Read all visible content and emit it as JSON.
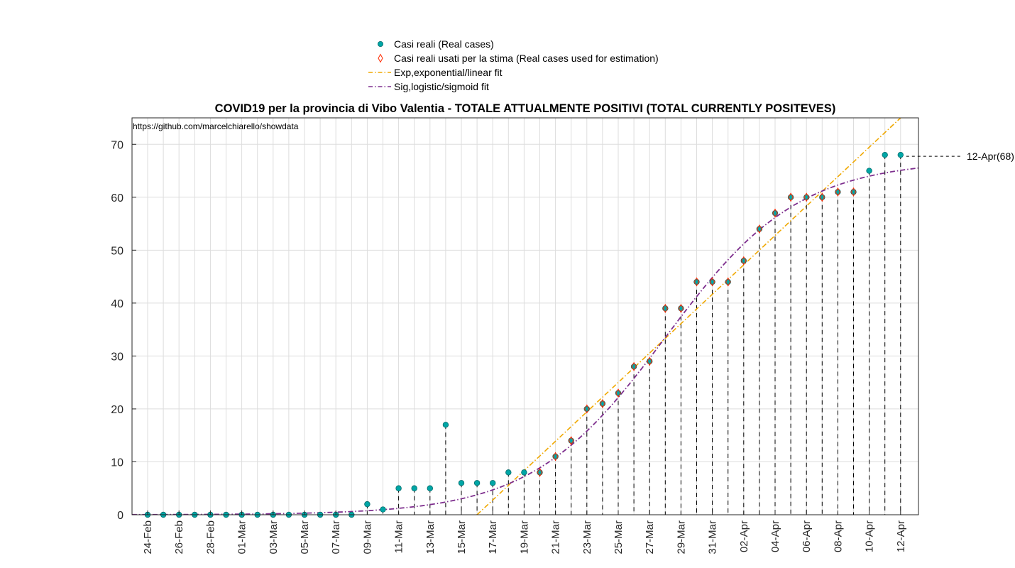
{
  "chart_data": {
    "type": "line",
    "title": "COVID19 per la provincia di Vibo Valentia - TOTALE ATTUALMENTE POSITIVI (TOTAL CURRENTLY POSITEVES)",
    "annotation_url": "https://github.com/marcelchiarello/showdata",
    "xlabel": "",
    "ylabel": "",
    "ylim": [
      0,
      75
    ],
    "yticks": [
      0,
      10,
      20,
      30,
      40,
      50,
      60,
      70
    ],
    "grid": true,
    "legend_position": "top-center",
    "x": [
      "24-Feb",
      "25-Feb",
      "26-Feb",
      "27-Feb",
      "28-Feb",
      "29-Feb",
      "01-Mar",
      "02-Mar",
      "03-Mar",
      "04-Mar",
      "05-Mar",
      "06-Mar",
      "07-Mar",
      "08-Mar",
      "09-Mar",
      "10-Mar",
      "11-Mar",
      "12-Mar",
      "13-Mar",
      "14-Mar",
      "15-Mar",
      "16-Mar",
      "17-Mar",
      "18-Mar",
      "19-Mar",
      "20-Mar",
      "21-Mar",
      "22-Mar",
      "23-Mar",
      "24-Mar",
      "25-Mar",
      "26-Mar",
      "27-Mar",
      "28-Mar",
      "29-Mar",
      "30-Mar",
      "31-Mar",
      "01-Apr",
      "02-Apr",
      "03-Apr",
      "04-Apr",
      "05-Apr",
      "06-Apr",
      "07-Apr",
      "08-Apr",
      "09-Apr",
      "10-Apr",
      "11-Apr",
      "12-Apr"
    ],
    "xtick_labels": [
      "24-Feb",
      "26-Feb",
      "28-Feb",
      "01-Mar",
      "03-Mar",
      "05-Mar",
      "07-Mar",
      "09-Mar",
      "11-Mar",
      "13-Mar",
      "15-Mar",
      "17-Mar",
      "19-Mar",
      "21-Mar",
      "23-Mar",
      "25-Mar",
      "27-Mar",
      "29-Mar",
      "31-Mar",
      "02-Apr",
      "04-Apr",
      "06-Apr",
      "08-Apr",
      "10-Apr",
      "12-Apr"
    ],
    "series": [
      {
        "name": "Casi reali (Real cases)",
        "marker": "circle",
        "color": "#00a6a6",
        "values": [
          0,
          0,
          0,
          0,
          0,
          0,
          0,
          0,
          0,
          0,
          0,
          0,
          0,
          0,
          2,
          1,
          5,
          5,
          5,
          17,
          6,
          6,
          6,
          8,
          8,
          8,
          11,
          14,
          20,
          21,
          23,
          28,
          29,
          39,
          39,
          44,
          44,
          44,
          48,
          54,
          57,
          60,
          60,
          60,
          61,
          61,
          65,
          68,
          68
        ]
      },
      {
        "name": "Casi reali usati per la stima (Real cases used for estimation)",
        "marker": "diamond",
        "color": "#ff2a00",
        "x": [
          "20-Mar",
          "21-Mar",
          "22-Mar",
          "23-Mar",
          "24-Mar",
          "25-Mar",
          "26-Mar",
          "27-Mar",
          "28-Mar",
          "29-Mar",
          "30-Mar",
          "31-Mar",
          "01-Apr",
          "02-Apr",
          "03-Apr",
          "04-Apr",
          "05-Apr",
          "06-Apr",
          "07-Apr",
          "08-Apr",
          "09-Apr"
        ],
        "values": [
          8,
          11,
          14,
          20,
          21,
          23,
          28,
          29,
          39,
          39,
          44,
          44,
          44,
          48,
          54,
          57,
          60,
          60,
          60,
          61,
          61
        ]
      },
      {
        "name": "Exp,exponential/linear fit",
        "style": "dash-dot",
        "color": "#f0a800",
        "x_start": "16-Mar",
        "y_start": 0,
        "x_end": "12-Apr",
        "y_end": 75
      },
      {
        "name": "Sig,logistic/sigmoid fit",
        "style": "dash-dot",
        "color": "#7e2f8e",
        "model": "logistic",
        "L": 67,
        "k": 0.235,
        "x0": "28-Mar"
      }
    ],
    "last_label": "12-Apr(68)",
    "colors": {
      "grid": "#dddddd",
      "stems": "#000000",
      "exp_fit": "#f0a800",
      "sig_fit": "#7e2f8e"
    }
  }
}
